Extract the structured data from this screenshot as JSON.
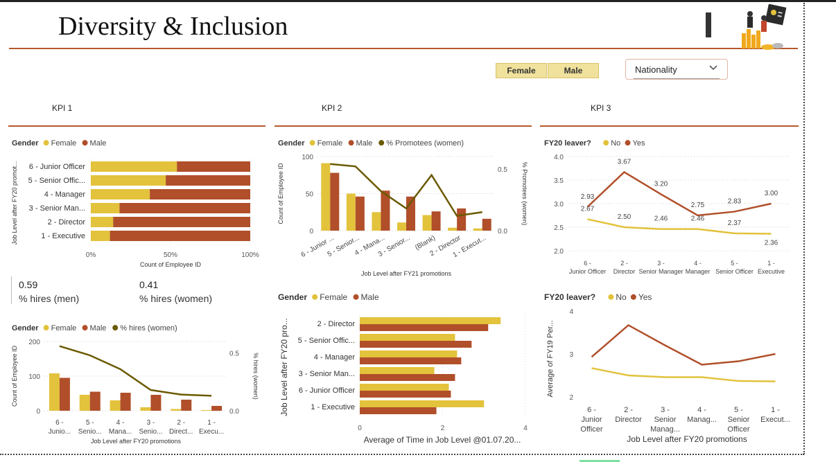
{
  "header": {
    "title": "Diversity & Inclusion"
  },
  "slicers": {
    "female": "Female",
    "male": "Male",
    "dropdown_label": "Nationality"
  },
  "kpi_labels": [
    "KPI 1",
    "KPI 2",
    "KPI 3"
  ],
  "kpi_cards": {
    "men_value": "0.59",
    "men_caption": "% hires (men)",
    "women_value": "0.41",
    "women_caption": "% hires (women)"
  },
  "colors": {
    "female": "#e3c23c",
    "male": "#b04f2a",
    "line_women": "#6b5a00",
    "no": "#e3c23c",
    "yes": "#b04f2a",
    "accent_rule": "#b5582b"
  },
  "chart_data": [
    {
      "id": "c1",
      "type": "bar",
      "orientation": "horizontal",
      "stacked": "percent",
      "legend_title": "Gender",
      "categories": [
        "6 - Junior Officer",
        "5 - Senior Offic...",
        "4 - Manager",
        "3 - Senior Man...",
        "2 - Director",
        "1 - Executive"
      ],
      "series": [
        {
          "name": "Female",
          "values": [
            0.54,
            0.47,
            0.37,
            0.18,
            0.14,
            0.12
          ]
        },
        {
          "name": "Male",
          "values": [
            0.46,
            0.53,
            0.63,
            0.82,
            0.86,
            0.88
          ]
        }
      ],
      "xticks": [
        "0%",
        "50%",
        "100%"
      ],
      "xlabel": "Count of Employee ID",
      "ylabel": "Job Level after FY20 promot..."
    },
    {
      "id": "c2",
      "type": "bar",
      "legend_title": "Gender",
      "categories": [
        "6 - Junior ...",
        "5 - Senior...",
        "4 - Mana...",
        "3 - Senior...",
        "(Blank)",
        "2 - Director",
        "1 - Execut..."
      ],
      "series": [
        {
          "name": "Female",
          "values": [
            91,
            50,
            25,
            11,
            21,
            4,
            3
          ]
        },
        {
          "name": "Male",
          "values": [
            78,
            46,
            54,
            46,
            26,
            30,
            16
          ]
        }
      ],
      "line": {
        "name": "% Promotees (women)",
        "values": [
          0.54,
          0.52,
          0.32,
          0.18,
          0.45,
          0.12,
          0.15
        ]
      },
      "ylim": [
        0,
        100
      ],
      "yticks": [
        0,
        50,
        100
      ],
      "y2lim": [
        0,
        0.6
      ],
      "y2ticks": [
        "0.0",
        "0.5"
      ],
      "xlabel": "Job Level after FY21 promotions",
      "ylabel": "Count of Employee ID",
      "y2label": "% Promotees (women)"
    },
    {
      "id": "c3",
      "type": "line",
      "legend_title": "FY20 leaver?",
      "categories": [
        "6 - Junior Officer",
        "2 - Director",
        "3 - Senior Manager",
        "4 - Manager",
        "5 - Senior Officer",
        "1 - Executive"
      ],
      "series": [
        {
          "name": "No",
          "values": [
            2.67,
            2.5,
            2.46,
            2.46,
            2.37,
            2.36
          ]
        },
        {
          "name": "Yes",
          "values": [
            2.93,
            3.67,
            3.2,
            2.75,
            2.83,
            3.0
          ]
        }
      ],
      "labels_no": [
        "2.67",
        "2.50",
        "2.46",
        "2.46",
        "2.37",
        "2.36"
      ],
      "labels_yes": [
        "2.93",
        "3.67",
        "3.20",
        "2.75",
        "2.83",
        "3.00"
      ],
      "ylim": [
        2.0,
        4.0
      ],
      "yticks": [
        "2.0",
        "2.5",
        "3.0",
        "3.5",
        "4.0"
      ]
    },
    {
      "id": "c4",
      "type": "bar",
      "legend_title": "Gender",
      "categories": [
        "6 - Junio...",
        "5 - Senio...",
        "4 - Mana...",
        "3 - Senio...",
        "2 - Direct...",
        "1 - Execu..."
      ],
      "series": [
        {
          "name": "Female",
          "values": [
            108,
            46,
            30,
            10,
            5,
            2
          ]
        },
        {
          "name": "Male",
          "values": [
            95,
            55,
            52,
            46,
            32,
            14
          ]
        }
      ],
      "line": {
        "name": "% hires (women)",
        "values": [
          0.56,
          0.48,
          0.36,
          0.18,
          0.14,
          0.13
        ]
      },
      "ylim": [
        0,
        200
      ],
      "yticks": [
        0,
        100,
        200
      ],
      "y2lim": [
        0,
        0.6
      ],
      "y2ticks": [
        "0.0",
        "0.5"
      ],
      "xlabel": "Job Level after FY20 promotions",
      "ylabel": "Count of Employee ID",
      "y2label": "% hires (women)"
    },
    {
      "id": "c5",
      "type": "bar",
      "orientation": "horizontal",
      "legend_title": "Gender",
      "categories": [
        "2 - Director",
        "5 - Senior Offic...",
        "4 - Manager",
        "3 - Senior Man...",
        "6 - Junior Officer",
        "1 - Executive"
      ],
      "series": [
        {
          "name": "Female",
          "values": [
            3.4,
            2.3,
            2.35,
            1.8,
            2.15,
            3.0
          ]
        },
        {
          "name": "Male",
          "values": [
            3.1,
            2.7,
            2.45,
            2.3,
            2.2,
            1.85
          ]
        }
      ],
      "xlim": [
        0,
        4
      ],
      "xticks": [
        0,
        2,
        4
      ],
      "xlabel": "Average of Time in Job Level @01.07.20...",
      "ylabel": "Job Level after FY20 pro..."
    },
    {
      "id": "c6",
      "type": "line",
      "legend_title": "FY20 leaver?",
      "categories": [
        "6 - Junior Officer",
        "2 - Director",
        "3 - Senior Manag...",
        "4 - Manag...",
        "5 - Senior Officer",
        "1 - Execut..."
      ],
      "series": [
        {
          "name": "No",
          "values": [
            2.67,
            2.5,
            2.46,
            2.46,
            2.37,
            2.36
          ]
        },
        {
          "name": "Yes",
          "values": [
            2.93,
            3.67,
            3.2,
            2.75,
            2.83,
            3.0
          ]
        }
      ],
      "ylim": [
        2,
        4
      ],
      "yticks": [
        2,
        3,
        4
      ],
      "xlabel": "Job Level after FY20 promotions",
      "ylabel": "Average of FY19 Per..."
    }
  ]
}
